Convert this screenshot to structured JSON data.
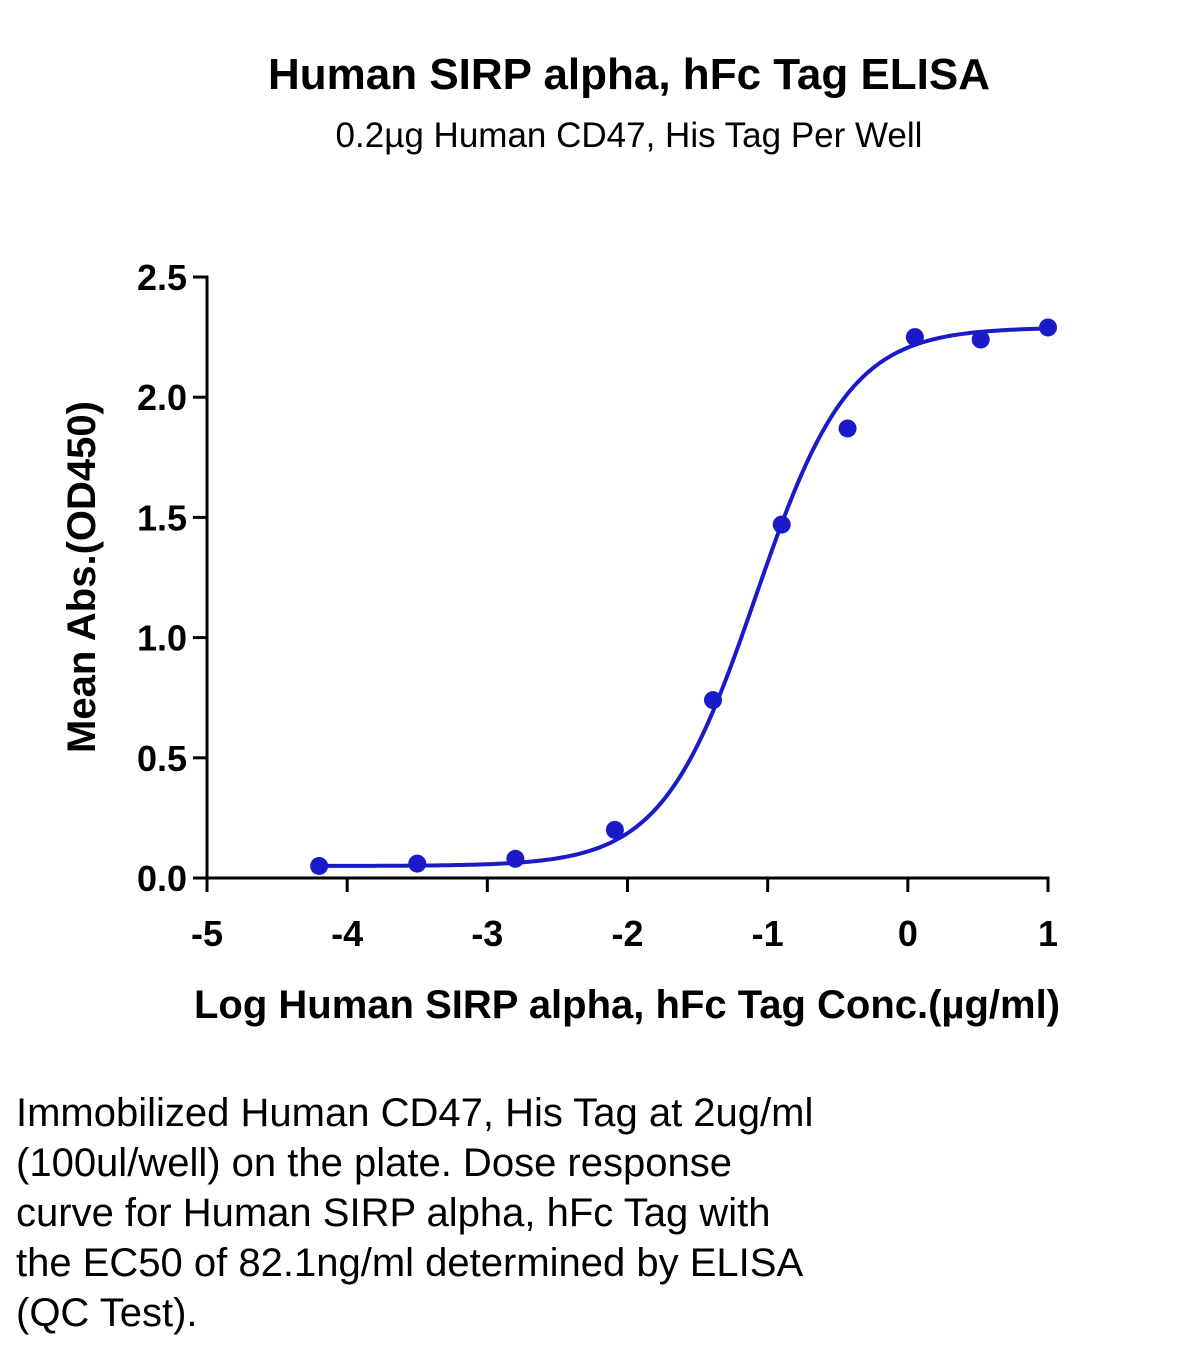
{
  "chart_data": {
    "type": "scatter",
    "title": "Human SIRP alpha, hFc Tag ELISA",
    "subtitle": "0.2µg Human CD47, His Tag Per Well",
    "xlabel": "Log Human SIRP alpha, hFc Tag Conc.(µg/ml)",
    "ylabel": "Mean Abs.(OD450)",
    "xlim": [
      -5,
      1
    ],
    "ylim": [
      0,
      2.5
    ],
    "x_ticks": [
      -5,
      -4,
      -3,
      -2,
      -1,
      0,
      1
    ],
    "x_tick_labels": [
      "-5",
      "-4",
      "-3",
      "-2",
      "-1",
      "0",
      "1"
    ],
    "y_ticks": [
      0,
      0.5,
      1.0,
      1.5,
      2.0,
      2.5
    ],
    "y_tick_labels": [
      "0.0",
      "0.5",
      "1.0",
      "1.5",
      "2.0",
      "2.5"
    ],
    "series": [
      {
        "x": [
          -4.2,
          -3.5,
          -2.8,
          -2.09,
          -1.39,
          -0.9,
          -0.43,
          0.05,
          0.52,
          1.0
        ],
        "y": [
          0.05,
          0.06,
          0.08,
          0.2,
          0.74,
          1.47,
          1.87,
          2.25,
          2.24,
          2.29
        ],
        "fit": "four-parameter logistic curve",
        "color": "#1a1ac8"
      }
    ],
    "grid": false,
    "legend": "none"
  },
  "caption": "Immobilized Human CD47, His Tag at 2ug/ml\n(100ul/well) on the plate. Dose response\ncurve for Human SIRP alpha, hFc Tag with\nthe EC50 of 82.1ng/ml determined by ELISA\n(QC Test)."
}
